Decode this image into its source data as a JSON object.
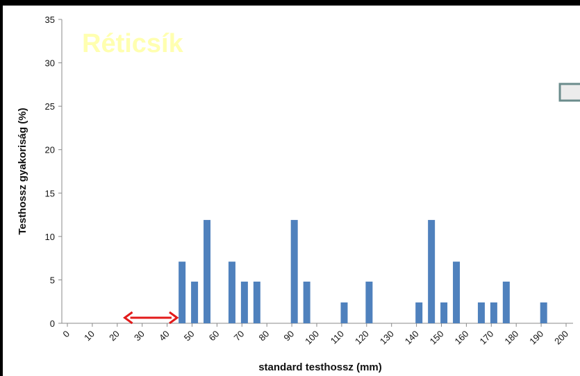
{
  "chart_data": {
    "type": "bar",
    "title": "Réticsík",
    "xlabel": "standard testhossz (mm)",
    "ylabel": "Testhossz gyakoriság (%)",
    "x_ticks": [
      0,
      10,
      20,
      30,
      40,
      50,
      60,
      70,
      80,
      90,
      100,
      110,
      120,
      130,
      140,
      150,
      160,
      170,
      180,
      190,
      200
    ],
    "y_ticks": [
      0,
      5,
      10,
      15,
      20,
      25,
      30,
      35
    ],
    "ylim": [
      0,
      35
    ],
    "xlim": [
      0,
      200
    ],
    "bars": [
      {
        "x": 46,
        "value": 7.1
      },
      {
        "x": 51,
        "value": 4.8
      },
      {
        "x": 56,
        "value": 11.9
      },
      {
        "x": 66,
        "value": 7.1
      },
      {
        "x": 71,
        "value": 4.8
      },
      {
        "x": 76,
        "value": 4.8
      },
      {
        "x": 91,
        "value": 11.9
      },
      {
        "x": 96,
        "value": 4.8
      },
      {
        "x": 111,
        "value": 2.4
      },
      {
        "x": 121,
        "value": 4.8
      },
      {
        "x": 141,
        "value": 2.4
      },
      {
        "x": 146,
        "value": 11.9
      },
      {
        "x": 151,
        "value": 2.4
      },
      {
        "x": 156,
        "value": 7.1
      },
      {
        "x": 166,
        "value": 2.4
      },
      {
        "x": 171,
        "value": 2.4
      },
      {
        "x": 176,
        "value": 4.8
      },
      {
        "x": 191,
        "value": 2.4
      }
    ],
    "arrow_range": [
      23,
      44
    ],
    "grid": false,
    "colors": {
      "bar": "#4F81BD",
      "title": "#FFFFB0",
      "arrow": "#E21A1A",
      "axis": "#888888"
    }
  }
}
